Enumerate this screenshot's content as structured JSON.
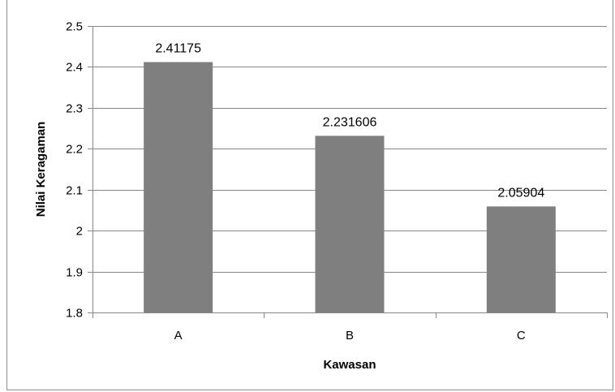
{
  "chart_data": {
    "type": "bar",
    "categories": [
      "A",
      "B",
      "C"
    ],
    "values": [
      2.41175,
      2.231606,
      2.05904
    ],
    "data_labels": [
      "2.41175",
      "2.231606",
      "2.05904"
    ],
    "title": "",
    "xlabel": "Kawasan",
    "ylabel": "Nilai Keragaman",
    "ylim": [
      1.8,
      2.5
    ],
    "yticks": [
      1.8,
      1.9,
      2.0,
      2.1,
      2.2,
      2.3,
      2.4,
      2.5
    ],
    "ytick_labels": [
      "1.8",
      "1.9",
      "2",
      "2.1",
      "2.2",
      "2.3",
      "2.4",
      "2.5"
    ],
    "grid": true,
    "legend": "none",
    "colors": {
      "bar": "#7f7f7f",
      "grid": "#888888",
      "axis": "#888888"
    }
  }
}
